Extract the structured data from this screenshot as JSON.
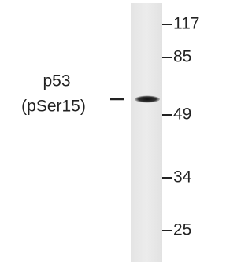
{
  "protein": {
    "name": "p53",
    "modification": "(pSer15)"
  },
  "markers": [
    "117",
    "85",
    "49",
    "34",
    "25"
  ]
}
